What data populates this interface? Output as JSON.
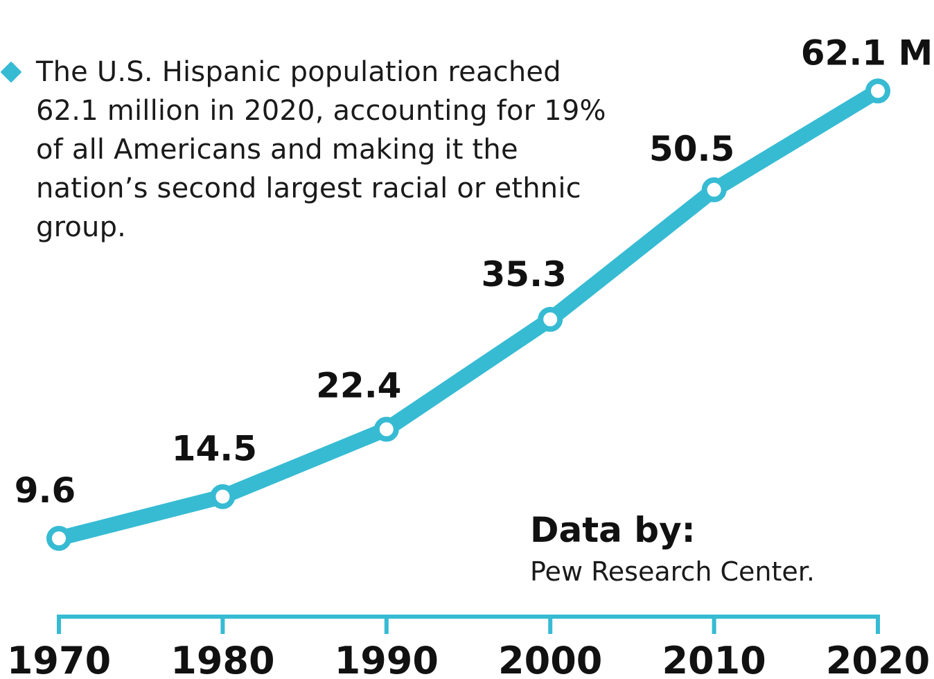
{
  "colors": {
    "line": "#36bbd3",
    "text": "#111111",
    "marker_fill": "#ffffff"
  },
  "annotation": {
    "text": "The U.S. Hispanic population reached 62.1 million in 2020, accounting for 19% of all Americans and making it the nation’s second largest racial or ethnic group.",
    "icon": "diamond-bullet"
  },
  "source": {
    "heading": "Data by:",
    "name": "Pew Research Center."
  },
  "chart_data": {
    "type": "line",
    "title": "",
    "xlabel": "",
    "ylabel": "",
    "x": [
      "1970",
      "1980",
      "1990",
      "2000",
      "2010",
      "2020"
    ],
    "series": [
      {
        "values": [
          9.6,
          14.5,
          22.4,
          35.3,
          50.5,
          62.1
        ],
        "labels": [
          "9.6",
          "14.5",
          "22.4",
          "35.3",
          "50.5",
          "62.1 M"
        ]
      }
    ],
    "unit": "M",
    "grid": false,
    "legend": "none"
  }
}
